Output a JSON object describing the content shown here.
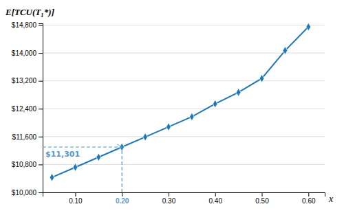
{
  "chart_data": {
    "type": "line",
    "xlabel": "x",
    "ylabel": "E[TCU(T₁*)]",
    "x": [
      0.05,
      0.1,
      0.15,
      0.2,
      0.25,
      0.3,
      0.35,
      0.4,
      0.45,
      0.5,
      0.55,
      0.6
    ],
    "values": [
      10430,
      10720,
      11010,
      11301,
      11590,
      11880,
      12170,
      12540,
      12870,
      13270,
      14070,
      14750
    ],
    "marker": "diamond",
    "xlim": [
      0.03,
      0.635
    ],
    "ylim": [
      10000,
      14850
    ],
    "xticks": [
      {
        "value": 0.1,
        "label": "0.10"
      },
      {
        "value": 0.2,
        "label": "0.20"
      },
      {
        "value": 0.3,
        "label": "0.30"
      },
      {
        "value": 0.4,
        "label": "0.40"
      },
      {
        "value": 0.5,
        "label": "0.50"
      },
      {
        "value": 0.6,
        "label": "0.60"
      }
    ],
    "yticks": [
      {
        "value": 10000,
        "label": "$10,000"
      },
      {
        "value": 10800,
        "label": "$10,800"
      },
      {
        "value": 11600,
        "label": "$11,600"
      },
      {
        "value": 12400,
        "label": "$12,400"
      },
      {
        "value": 13200,
        "label": "$13,200"
      },
      {
        "value": 14000,
        "label": "$14,000"
      },
      {
        "value": 14800,
        "label": "$14,800"
      }
    ],
    "grid": true,
    "annotations": [
      {
        "text": "$11,301",
        "x": 0.2,
        "y": 11301,
        "color": "#5599CC"
      }
    ]
  }
}
